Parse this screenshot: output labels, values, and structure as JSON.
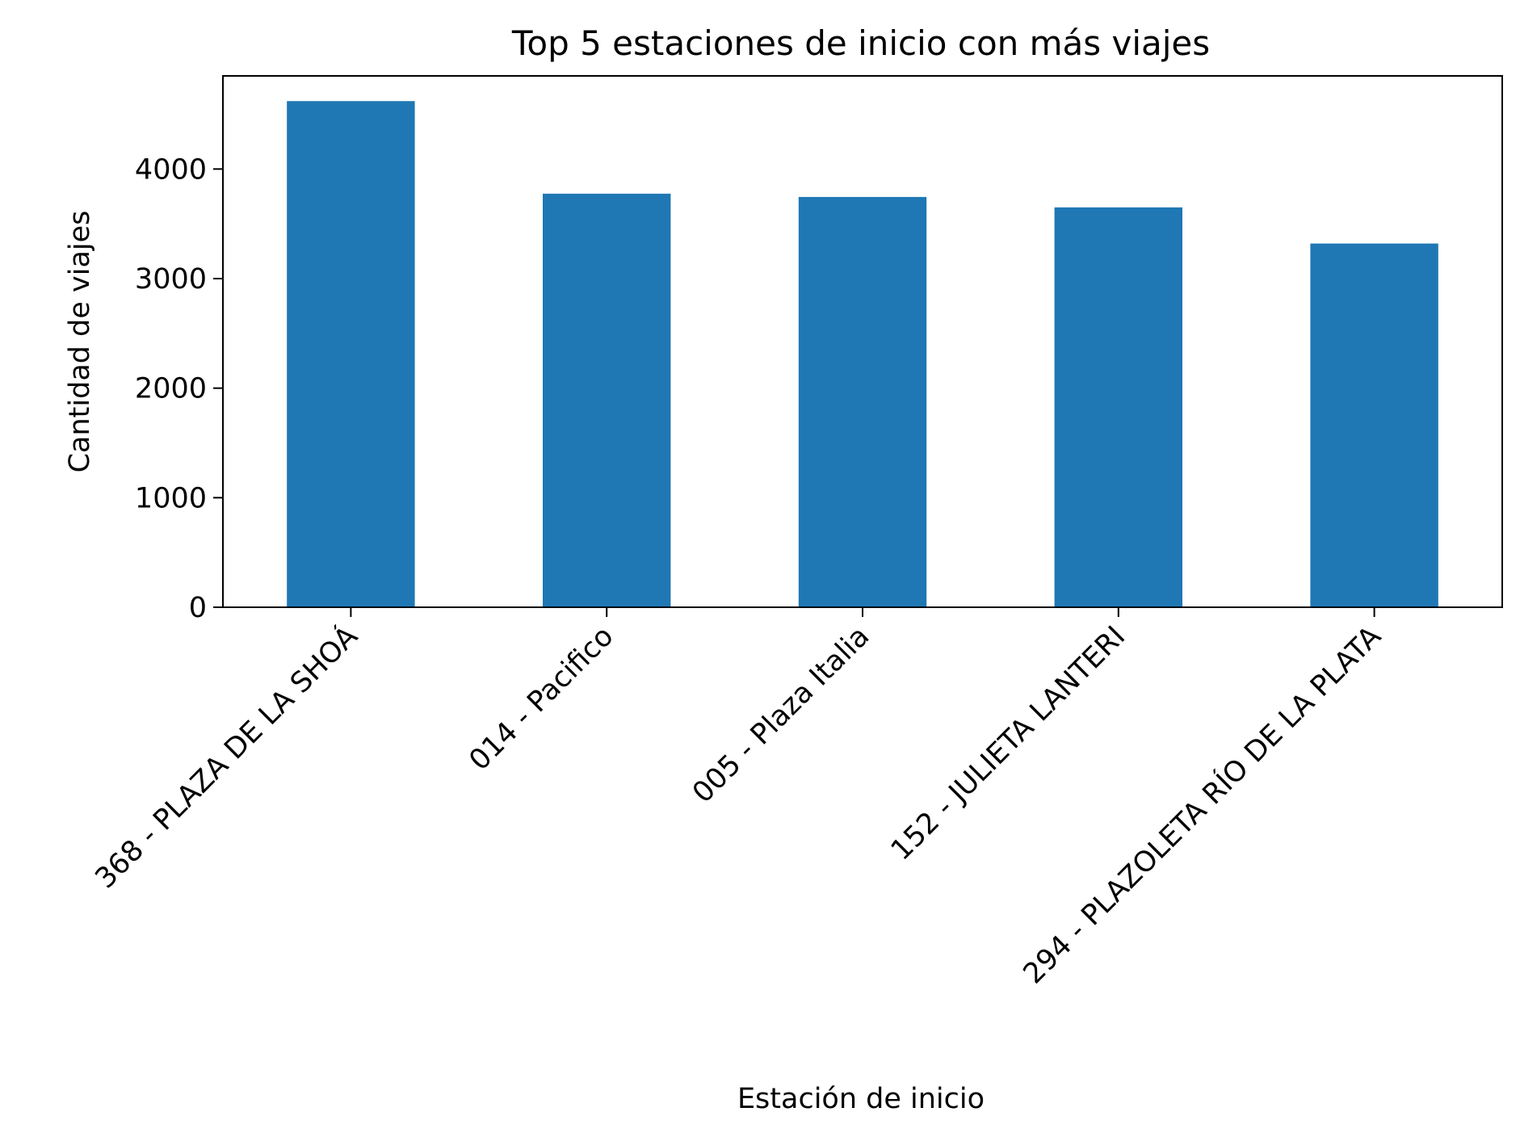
{
  "chart_data": {
    "type": "bar",
    "title": "Top 5 estaciones de inicio con más viajes",
    "xlabel": "Estación de inicio",
    "ylabel": "Cantidad de viajes",
    "categories": [
      "368 - PLAZA DE LA SHOÁ",
      "014 - Pacifico",
      "005 - Plaza Italia",
      "152 - JULIETA LANTERI",
      "294 - PLAZOLETA RÍO DE LA PLATA"
    ],
    "values": [
      4620,
      3775,
      3745,
      3650,
      3320
    ],
    "ylim": [
      0,
      4850
    ],
    "yticks": [
      0,
      1000,
      2000,
      3000,
      4000
    ],
    "grid": false,
    "legend": "none",
    "colors": {
      "bar": "#1f77b4",
      "axis": "#000000",
      "background": "#ffffff"
    }
  }
}
